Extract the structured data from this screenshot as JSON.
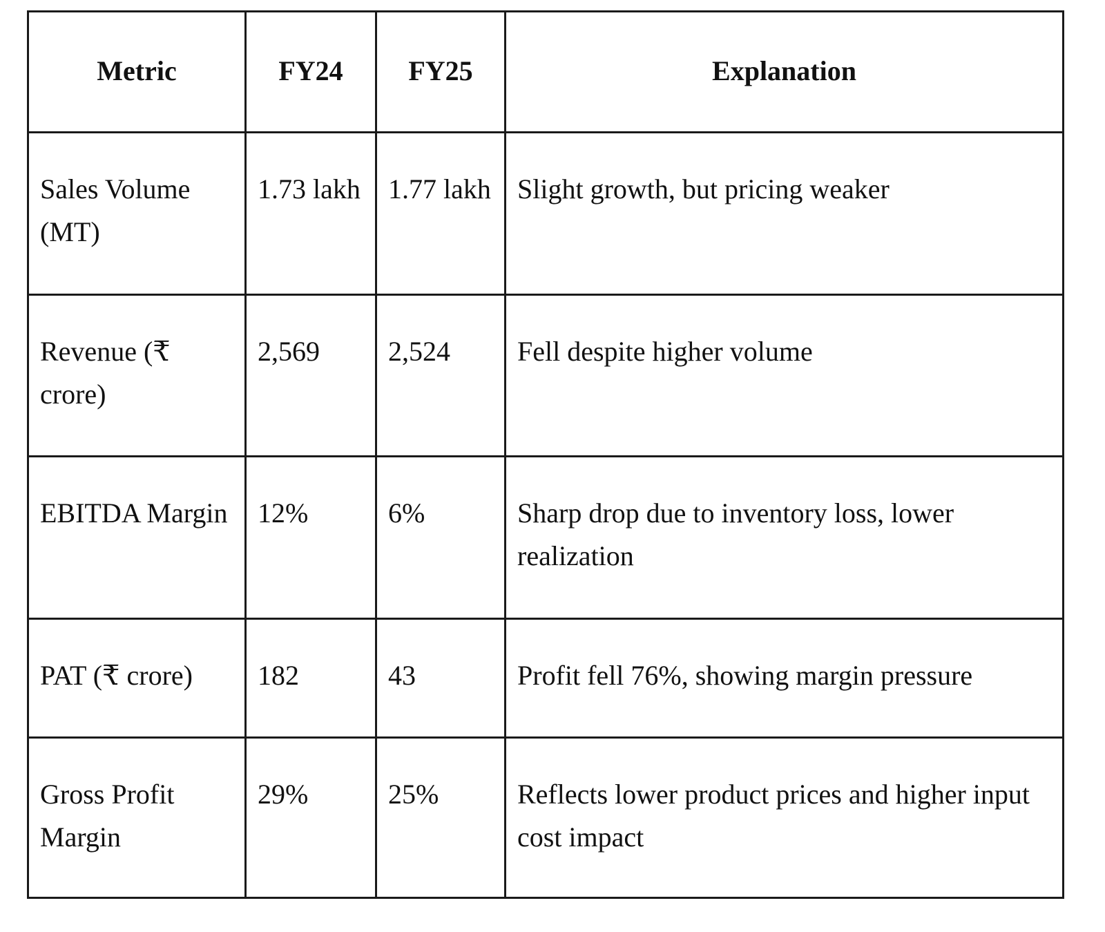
{
  "table": {
    "headers": [
      "Metric",
      "FY24",
      "FY25",
      "Explanation"
    ],
    "rows": [
      {
        "metric": "Sales Volume (MT)",
        "fy24": "1.73 lakh",
        "fy25": "1.77 lakh",
        "explanation": "Slight growth, but pricing weaker"
      },
      {
        "metric": "Revenue (₹ crore)",
        "fy24": "2,569",
        "fy25": "2,524",
        "explanation": "Fell despite higher volume"
      },
      {
        "metric": "EBITDA Margin",
        "fy24": "12%",
        "fy25": "6%",
        "explanation": "Sharp drop due to inventory loss, lower realization"
      },
      {
        "metric": "PAT (₹ crore)",
        "fy24": "182",
        "fy25": "43",
        "explanation": "Profit fell 76%, showing margin pressure"
      },
      {
        "metric": "Gross Profit Margin",
        "fy24": "29%",
        "fy25": "25%",
        "explanation": "Reflects lower product prices and higher input cost impact"
      }
    ]
  }
}
